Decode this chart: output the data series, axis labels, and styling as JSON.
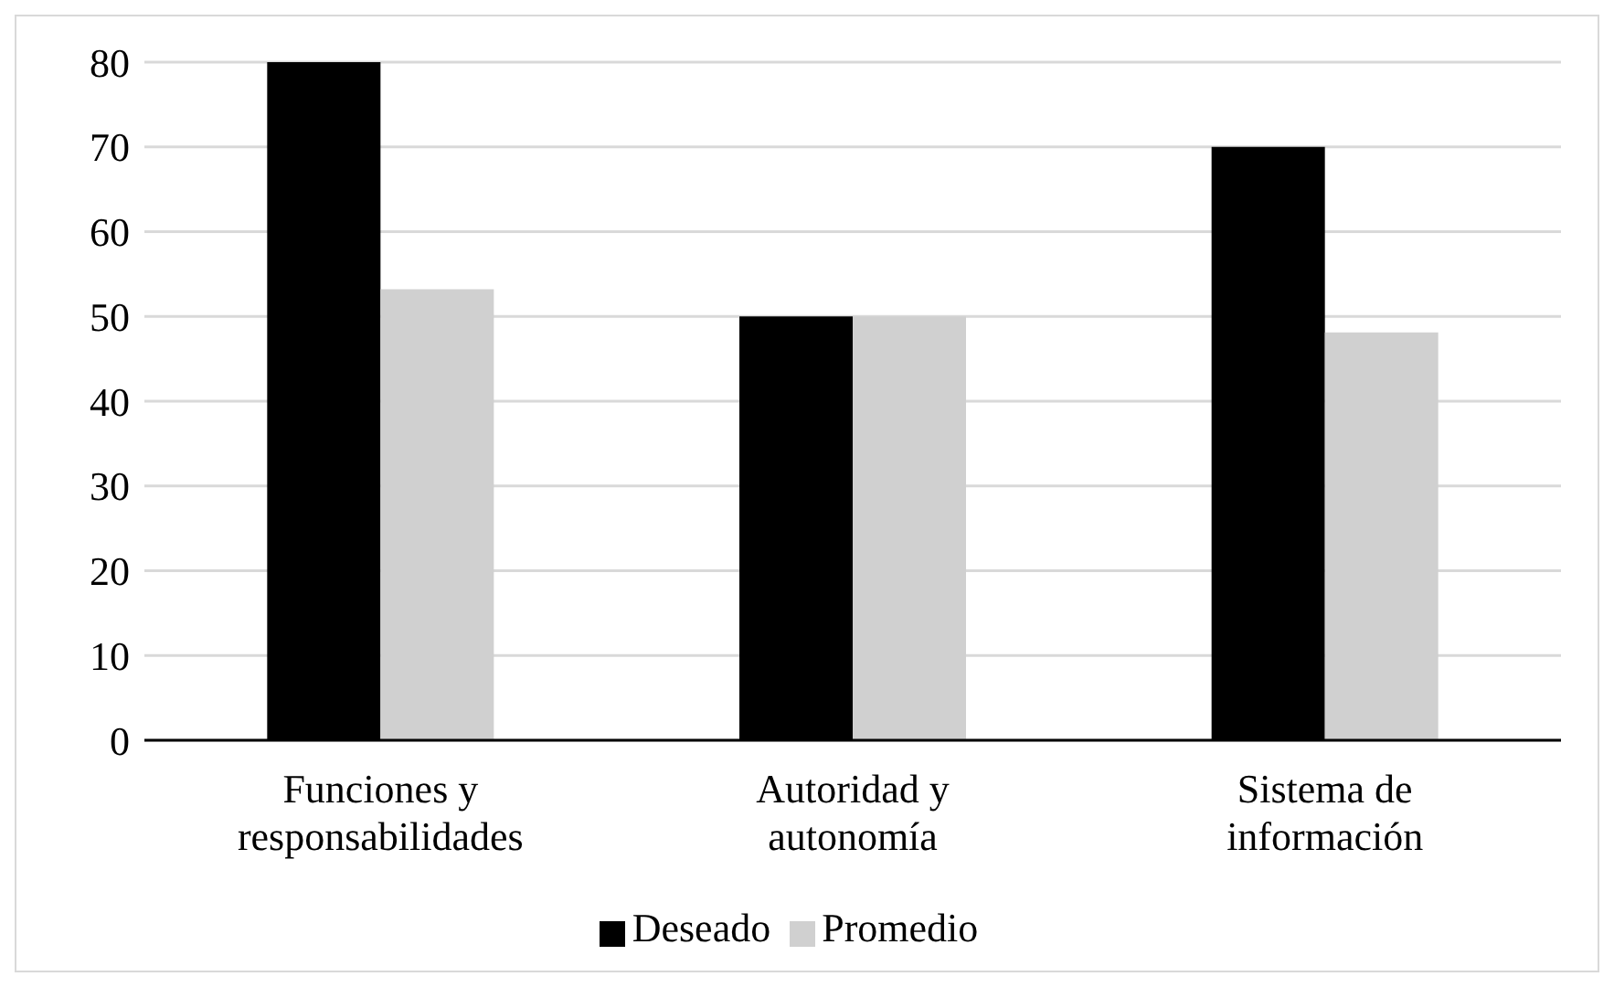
{
  "chart_data": {
    "type": "bar",
    "categories": [
      "Funciones y responsabilidades",
      "Autoridad y autonomía",
      "Sistema de información"
    ],
    "series": [
      {
        "name": "Deseado",
        "color": "#000000",
        "values": [
          80,
          50,
          70
        ]
      },
      {
        "name": "Promedio",
        "color": "#d0d0d0",
        "values": [
          53.2,
          50,
          48.1
        ]
      }
    ],
    "ylim": [
      0,
      80
    ],
    "yticks": [
      0,
      10,
      20,
      30,
      40,
      50,
      60,
      70,
      80
    ],
    "grid": "y",
    "legend": "bottom"
  }
}
